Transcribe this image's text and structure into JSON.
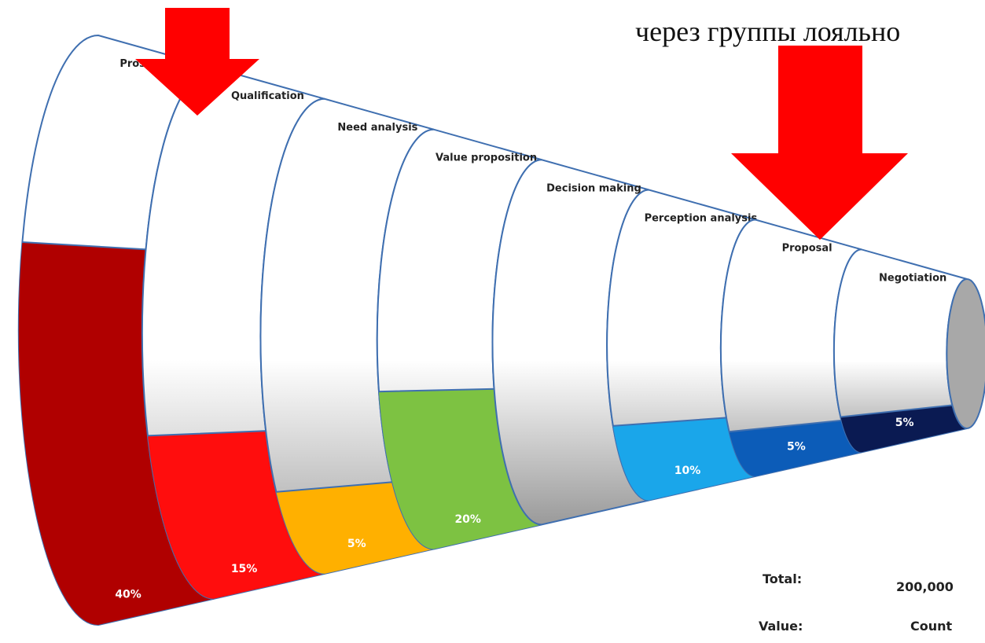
{
  "header": {
    "caption": "через группы лояльно"
  },
  "chart_data": {
    "type": "funnel",
    "categories": [
      "Prospecting",
      "Qualification",
      "Need analysis",
      "Value proposition",
      "Decision making",
      "Perception analysis",
      "Proposal",
      "Negotiation"
    ],
    "values": [
      40,
      15,
      5,
      20,
      null,
      10,
      5,
      5
    ],
    "value_labels": [
      "40%",
      "15%",
      "5%",
      "20%",
      null,
      "10%",
      "5%",
      "5%"
    ],
    "colors": [
      "#b00000",
      "#ff0d0d",
      "#ffb000",
      "#7dc242",
      null,
      "#1aa6ea",
      "#0c5cb8",
      "#0a1a52"
    ],
    "total_label": "Total:",
    "total": "200,000",
    "value_label": "Value:",
    "value_type": "Count"
  }
}
